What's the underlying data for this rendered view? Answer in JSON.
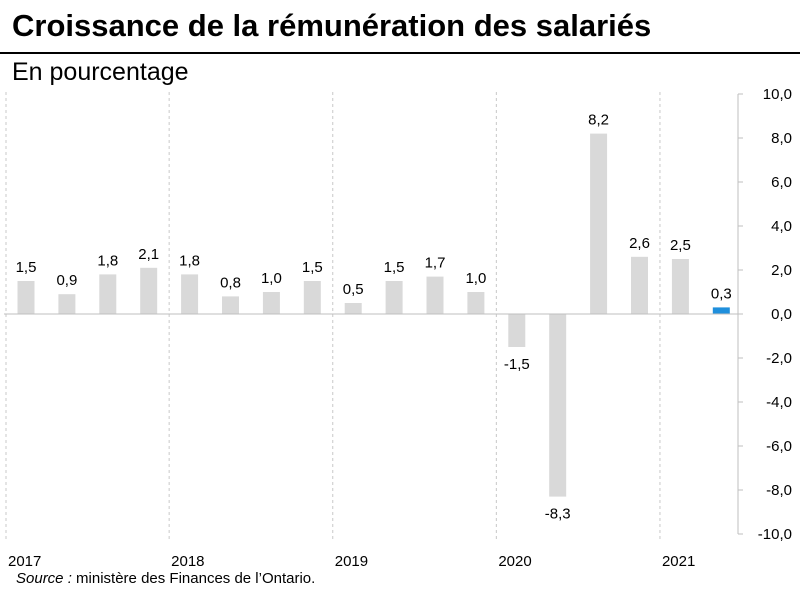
{
  "title": "Croissance de la rémunération des salariés",
  "subtitle": "En pourcentage",
  "source": {
    "label": "Source :",
    "text": "ministère des Finances de l’Ontario."
  },
  "chart_data": {
    "type": "bar",
    "categories": [
      "2017 T1",
      "2017 T2",
      "2017 T3",
      "2017 T4",
      "2018 T1",
      "2018 T2",
      "2018 T3",
      "2018 T4",
      "2019 T1",
      "2019 T2",
      "2019 T3",
      "2019 T4",
      "2020 T1",
      "2020 T2",
      "2020 T3",
      "2020 T4",
      "2021 T1",
      "2021 T2"
    ],
    "values": [
      1.5,
      0.9,
      1.8,
      2.1,
      1.8,
      0.8,
      1.0,
      1.5,
      0.5,
      1.5,
      1.7,
      1.0,
      -1.5,
      -8.3,
      8.2,
      2.6,
      2.5,
      0.3
    ],
    "value_labels": [
      "1,5",
      "0,9",
      "1,8",
      "2,1",
      "1,8",
      "0,8",
      "1,0",
      "1,5",
      "0,5",
      "1,5",
      "1,7",
      "1,0",
      "-1,5",
      "-8,3",
      "8,2",
      "2,6",
      "2,5",
      "0,3"
    ],
    "year_labels": [
      "2017",
      "2018",
      "2019",
      "2020",
      "2021"
    ],
    "ylim": [
      -10,
      10
    ],
    "y_ticks": [
      10,
      8,
      6,
      4,
      2,
      0,
      -2,
      -4,
      -6,
      -8,
      -10
    ],
    "y_tick_labels": [
      "10,0",
      "8,0",
      "6,0",
      "4,0",
      "2,0",
      "0,0",
      "-2,0",
      "-4,0",
      "-6,0",
      "-8,0",
      "-10,0"
    ],
    "y_axis_position": "right",
    "colors": {
      "bar": "#d9d9d9",
      "highlight": "#1f8fdc",
      "grid": "#c8c8c8"
    },
    "highlight_index": 17
  }
}
